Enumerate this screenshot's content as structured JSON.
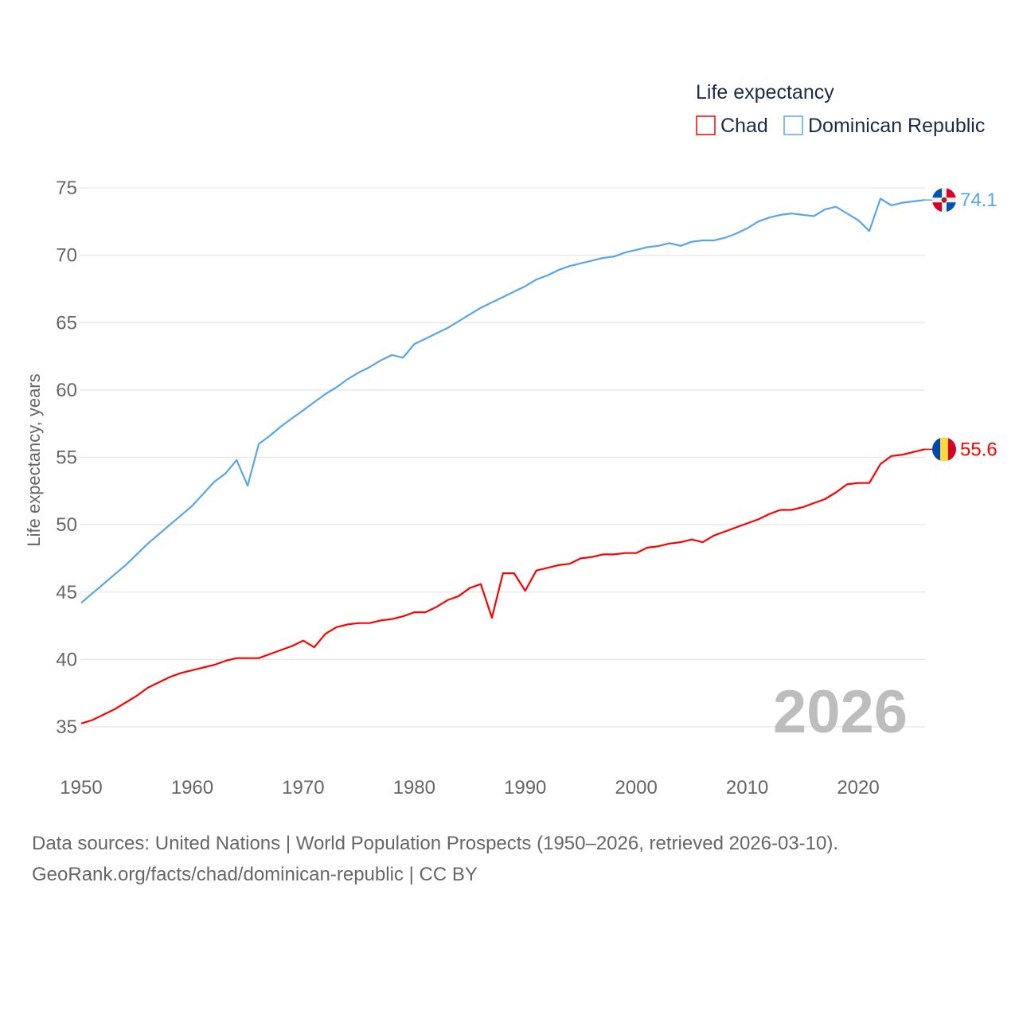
{
  "chart_data": {
    "type": "line",
    "title": "",
    "legend_title": "Life expectancy",
    "legend_placement": "top-right",
    "xlabel": "",
    "ylabel": "Life expectancy, years",
    "xlim": [
      1950,
      2026
    ],
    "ylim": [
      32.5,
      76
    ],
    "y_ticks": [
      35,
      40,
      45,
      50,
      55,
      60,
      65,
      70,
      75
    ],
    "x_ticks": [
      1950,
      1960,
      1970,
      1980,
      1990,
      2000,
      2010,
      2020
    ],
    "grid": true,
    "year_watermark": "2026",
    "x": [
      1950,
      1951,
      1952,
      1953,
      1954,
      1955,
      1956,
      1957,
      1958,
      1959,
      1960,
      1961,
      1962,
      1963,
      1964,
      1965,
      1966,
      1967,
      1968,
      1969,
      1970,
      1971,
      1972,
      1973,
      1974,
      1975,
      1976,
      1977,
      1978,
      1979,
      1980,
      1981,
      1982,
      1983,
      1984,
      1985,
      1986,
      1987,
      1988,
      1989,
      1990,
      1991,
      1992,
      1993,
      1994,
      1995,
      1996,
      1997,
      1998,
      1999,
      2000,
      2001,
      2002,
      2003,
      2004,
      2005,
      2006,
      2007,
      2008,
      2009,
      2010,
      2011,
      2012,
      2013,
      2014,
      2015,
      2016,
      2017,
      2018,
      2019,
      2020,
      2021,
      2022,
      2023,
      2024,
      2025,
      2026
    ],
    "series": [
      {
        "name": "Chad",
        "color": "#ff0000",
        "end_label": "55.6",
        "values": [
          35.25,
          35.5,
          35.9,
          36.3,
          36.8,
          37.3,
          37.9,
          38.3,
          38.7,
          39.0,
          39.2,
          39.4,
          39.6,
          39.9,
          40.1,
          40.1,
          40.1,
          40.4,
          40.7,
          41.0,
          41.4,
          40.9,
          41.9,
          42.4,
          42.6,
          42.7,
          42.7,
          42.9,
          43.0,
          43.2,
          43.5,
          43.5,
          43.9,
          44.4,
          44.7,
          45.3,
          45.6,
          43.1,
          46.4,
          46.4,
          45.1,
          46.6,
          46.8,
          47.0,
          47.1,
          47.5,
          47.6,
          47.8,
          47.8,
          47.9,
          47.9,
          48.3,
          48.4,
          48.6,
          48.7,
          48.9,
          48.7,
          49.2,
          49.5,
          49.8,
          50.1,
          50.4,
          50.8,
          51.1,
          51.1,
          51.3,
          51.6,
          51.9,
          52.4,
          53.0,
          53.1,
          53.1,
          54.5,
          55.1,
          55.2,
          55.4,
          55.6
        ]
      },
      {
        "name": "Dominican Republic",
        "color": "#5aa5e8",
        "end_label": "74.1",
        "values": [
          44.2,
          44.9,
          45.6,
          46.3,
          47.0,
          47.8,
          48.6,
          49.3,
          50.0,
          50.7,
          51.4,
          52.3,
          53.2,
          53.8,
          54.8,
          52.9,
          56.0,
          56.6,
          57.3,
          57.9,
          58.5,
          59.1,
          59.7,
          60.2,
          60.8,
          61.3,
          61.7,
          62.2,
          62.6,
          62.4,
          63.4,
          63.8,
          64.2,
          64.6,
          65.1,
          65.6,
          66.1,
          66.5,
          66.9,
          67.3,
          67.7,
          68.2,
          68.5,
          68.9,
          69.2,
          69.4,
          69.6,
          69.8,
          69.9,
          70.2,
          70.4,
          70.6,
          70.7,
          70.9,
          70.7,
          71.0,
          71.1,
          71.1,
          71.3,
          71.6,
          72.0,
          72.5,
          72.8,
          73.0,
          73.1,
          73.0,
          72.9,
          73.4,
          73.6,
          73.1,
          72.6,
          71.8,
          74.2,
          73.7,
          73.9,
          74.0,
          74.1
        ]
      }
    ]
  },
  "footer": {
    "line1": "Data sources: United Nations | World Population Prospects (1950–2026, retrieved 2026-03-10).",
    "line2": "GeoRank.org/facts/chad/dominican-republic | CC BY"
  }
}
